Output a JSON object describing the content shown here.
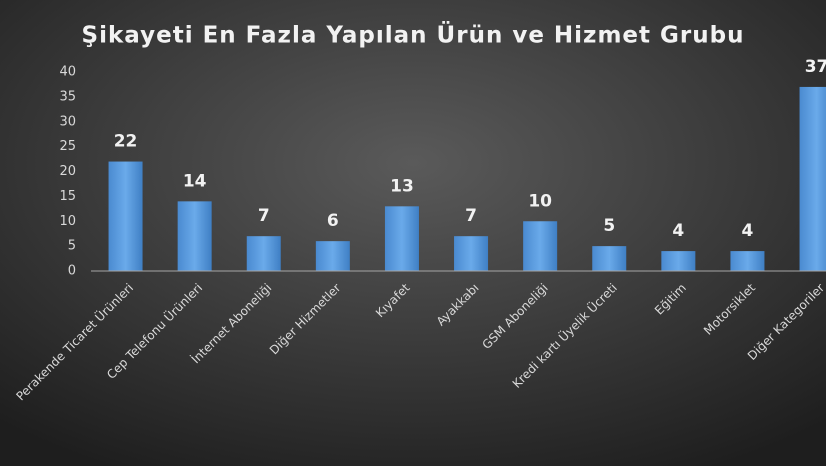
{
  "chart_data": {
    "type": "bar",
    "title": "Şikayeti En Fazla Yapılan Ürün ve Hizmet Grubu",
    "categories": [
      "Perakende Ticaret Ürünleri",
      "Cep Telefonu Ürünleri",
      "İnternet Aboneliği",
      "Diğer Hizmetler",
      "Kıyafet",
      "Ayakkabı",
      "GSM Aboneliği",
      "Kredi kartı Üyelik Ücreti",
      "Eğitim",
      "Motorsiklet",
      "Diğer Kategoriler"
    ],
    "values": [
      22,
      14,
      7,
      6,
      13,
      7,
      10,
      5,
      4,
      4,
      37
    ],
    "color": "#5b9bd5",
    "ylim": [
      0,
      40
    ],
    "yticks": [
      0,
      5,
      10,
      15,
      20,
      25,
      30,
      35,
      40
    ],
    "grid": false
  }
}
